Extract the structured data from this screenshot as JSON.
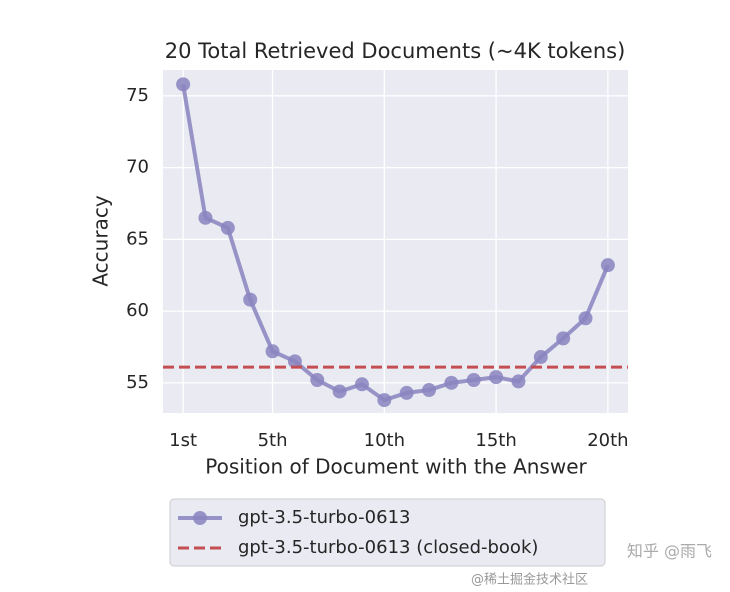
{
  "chart_data": {
    "type": "line",
    "title": "20 Total Retrieved Documents (~4K tokens)",
    "xlabel": "Position of Document with the Answer",
    "ylabel": "Accuracy",
    "x": [
      1,
      2,
      3,
      4,
      5,
      6,
      7,
      8,
      9,
      10,
      11,
      12,
      13,
      14,
      15,
      16,
      17,
      18,
      19,
      20
    ],
    "series": [
      {
        "name": "gpt-3.5-turbo-0613",
        "color": "#8a84c0",
        "values": [
          75.8,
          66.5,
          65.8,
          60.8,
          57.2,
          56.5,
          55.2,
          54.4,
          54.9,
          53.8,
          54.3,
          54.5,
          55.0,
          55.2,
          55.4,
          55.1,
          56.8,
          58.1,
          59.5,
          63.2
        ]
      },
      {
        "name": "gpt-3.5-turbo-0613 (closed-book)",
        "color": "#c44e52",
        "style": "dashed",
        "value": 56.1
      }
    ],
    "xlim": [
      0.1,
      20.9
    ],
    "ylim": [
      52.9,
      76.8
    ],
    "xticks": [
      {
        "value": 1,
        "label": "1st"
      },
      {
        "value": 5,
        "label": "5th"
      },
      {
        "value": 10,
        "label": "10th"
      },
      {
        "value": 15,
        "label": "15th"
      },
      {
        "value": 20,
        "label": "20th"
      }
    ],
    "yticks": [
      55,
      60,
      65,
      70,
      75
    ],
    "grid": true,
    "legend": "below"
  },
  "watermarks": [
    "知乎 @雨飞",
    "@稀土掘金技术社区"
  ]
}
